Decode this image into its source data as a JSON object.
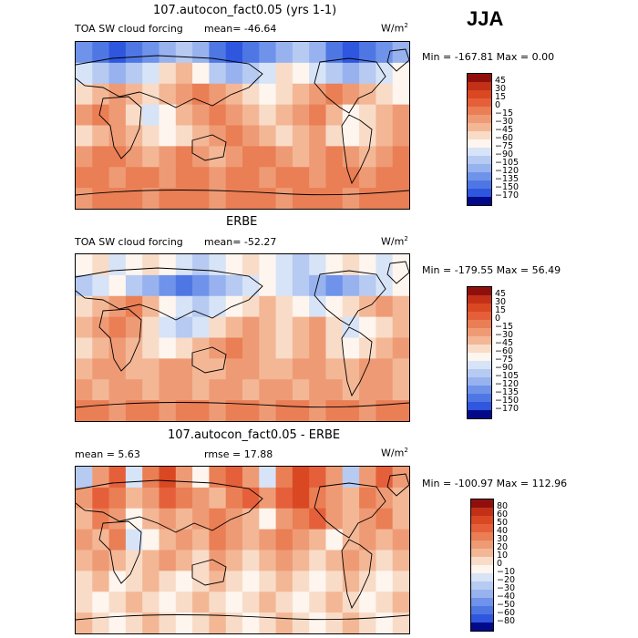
{
  "season": "JJA",
  "colors": {
    "warm": [
      "#f8dcc8",
      "#f3b796",
      "#ee9b75",
      "#ea7e55",
      "#e5603a",
      "#d94823",
      "#c13017",
      "#8f0f0d"
    ],
    "cool": [
      "#d7e3f7",
      "#b6caf2",
      "#97b2ee",
      "#6f93ea",
      "#4f77e4",
      "#2f56df",
      "#1833c6",
      "#030a8a"
    ]
  },
  "panels": [
    {
      "title": "107.autocon_fact0.05 (yrs 1-1)",
      "left_label": "TOA SW cloud forcing",
      "stat1": "mean= -46.64",
      "stat2": "",
      "unit_base": "W/m",
      "unit_exp": "2",
      "minmax": "Min = -167.81 Max =    0.00",
      "colorbar": {
        "labels": [
          "45",
          "30",
          "15",
          "0",
          "−15",
          "−30",
          "−45",
          "−60",
          "−75",
          "−90",
          "−105",
          "−120",
          "−135",
          "−150",
          "−170"
        ],
        "colors": [
          "#8f0f0d",
          "#c13017",
          "#d94823",
          "#e5603a",
          "#ea7e55",
          "#ee9b75",
          "#f3b796",
          "#f8dcc8",
          "#fdf5ee",
          "#d7e3f7",
          "#b6caf2",
          "#97b2ee",
          "#6f93ea",
          "#4f77e4",
          "#2f56df",
          "#030a8a"
        ]
      },
      "field": [
        [
          -135,
          -150,
          -170,
          -150,
          -135,
          -120,
          -105,
          -120,
          -150,
          -170,
          -150,
          -135,
          -120,
          -105,
          -120,
          -150,
          -170,
          -150,
          -135,
          -120
        ],
        [
          -90,
          -105,
          -120,
          -105,
          -90,
          -60,
          -45,
          -75,
          -105,
          -120,
          -105,
          -90,
          -60,
          -75,
          -90,
          -105,
          -120,
          -105,
          -90,
          -75
        ],
        [
          -60,
          -45,
          -30,
          -45,
          -60,
          -45,
          -30,
          -15,
          -30,
          -45,
          -60,
          -75,
          -60,
          -45,
          -30,
          -15,
          -30,
          -45,
          -60,
          -75
        ],
        [
          -30,
          -15,
          -30,
          -60,
          -90,
          -75,
          -45,
          -30,
          -15,
          -30,
          -45,
          -60,
          -45,
          -30,
          -15,
          -45,
          -75,
          -60,
          -45,
          -30
        ],
        [
          -60,
          -45,
          -30,
          -45,
          -60,
          -75,
          -60,
          -45,
          -30,
          -15,
          -30,
          -45,
          -60,
          -45,
          -30,
          -60,
          -75,
          -60,
          -45,
          -30
        ],
        [
          -30,
          -15,
          -15,
          -30,
          -45,
          -30,
          -15,
          -30,
          -45,
          -30,
          -15,
          -15,
          -30,
          -45,
          -30,
          -15,
          -30,
          -45,
          -30,
          -15
        ],
        [
          -15,
          -15,
          -30,
          -15,
          -15,
          -30,
          -15,
          -15,
          -30,
          -15,
          -15,
          -30,
          -15,
          -15,
          -30,
          -15,
          -15,
          -30,
          -15,
          -15
        ],
        [
          -30,
          -15,
          -15,
          -15,
          -30,
          -15,
          -15,
          -15,
          -30,
          -15,
          -15,
          -15,
          -30,
          -15,
          -15,
          -15,
          -30,
          -15,
          -15,
          -15
        ]
      ]
    },
    {
      "title": "ERBE",
      "left_label": "TOA SW cloud forcing",
      "stat1": "mean= -52.27",
      "stat2": "",
      "unit_base": "W/m",
      "unit_exp": "2",
      "minmax": "Min = -179.55 Max =   56.49",
      "colorbar": {
        "labels": [
          "45",
          "30",
          "15",
          "0",
          "−15",
          "−30",
          "−45",
          "−60",
          "−75",
          "−90",
          "−105",
          "−120",
          "−135",
          "−150",
          "−170"
        ],
        "colors": [
          "#8f0f0d",
          "#c13017",
          "#d94823",
          "#e5603a",
          "#ea7e55",
          "#ee9b75",
          "#f3b796",
          "#f8dcc8",
          "#fdf5ee",
          "#d7e3f7",
          "#b6caf2",
          "#97b2ee",
          "#6f93ea",
          "#4f77e4",
          "#2f56df",
          "#030a8a"
        ]
      },
      "field": [
        [
          -75,
          -60,
          -90,
          -75,
          -60,
          -75,
          -90,
          -105,
          -90,
          -75,
          -60,
          -75,
          -90,
          -105,
          -90,
          -75,
          -60,
          -75,
          -90,
          -75
        ],
        [
          -105,
          -90,
          -75,
          -105,
          -120,
          -135,
          -150,
          -135,
          -120,
          -105,
          -90,
          -75,
          -90,
          -105,
          -120,
          -135,
          -120,
          -105,
          -90,
          -75
        ],
        [
          -60,
          -45,
          -30,
          -15,
          -45,
          -75,
          -90,
          -105,
          -90,
          -75,
          -60,
          -45,
          -60,
          -75,
          -90,
          -75,
          -60,
          -45,
          -30,
          -45
        ],
        [
          -45,
          -30,
          -15,
          -30,
          -60,
          -90,
          -105,
          -90,
          -60,
          -45,
          -30,
          -45,
          -60,
          -45,
          -30,
          -60,
          -90,
          -75,
          -60,
          -45
        ],
        [
          -60,
          -45,
          -30,
          -45,
          -60,
          -75,
          -60,
          -45,
          -30,
          -15,
          -30,
          -45,
          -60,
          -45,
          -30,
          -60,
          -75,
          -60,
          -45,
          -30
        ],
        [
          -45,
          -30,
          -30,
          -45,
          -45,
          -30,
          -30,
          -45,
          -45,
          -30,
          -30,
          -45,
          -45,
          -30,
          -30,
          -45,
          -45,
          -30,
          -30,
          -45
        ],
        [
          -30,
          -45,
          -30,
          -30,
          -45,
          -30,
          -30,
          -45,
          -30,
          -30,
          -45,
          -30,
          -30,
          -45,
          -30,
          -30,
          -45,
          -30,
          -30,
          -45
        ],
        [
          -15,
          -15,
          -30,
          -15,
          -15,
          -30,
          -15,
          -15,
          -30,
          -15,
          -15,
          -30,
          -15,
          -15,
          -30,
          -15,
          -15,
          -30,
          -15,
          -15
        ]
      ]
    },
    {
      "title": "107.autocon_fact0.05 - ERBE",
      "left_label": "",
      "stat1": "mean =    5.63",
      "stat2": "rmse =   17.88",
      "unit_base": "W/m",
      "unit_exp": "2",
      "minmax": "Min = -100.97 Max = 112.96",
      "colorbar": {
        "labels": [
          "80",
          "60",
          "50",
          "40",
          "30",
          "20",
          "10",
          "0",
          "−10",
          "−20",
          "−30",
          "−40",
          "−50",
          "−60",
          "−80"
        ],
        "colors": [
          "#8f0f0d",
          "#c13017",
          "#d94823",
          "#e5603a",
          "#ea7e55",
          "#ee9b75",
          "#f3b796",
          "#f8dcc8",
          "#fdf5ee",
          "#d7e3f7",
          "#b6caf2",
          "#97b2ee",
          "#6f93ea",
          "#4f77e4",
          "#2f56df",
          "#030a8a"
        ]
      },
      "field": [
        [
          -30,
          20,
          40,
          -20,
          30,
          50,
          20,
          -10,
          30,
          40,
          20,
          -20,
          30,
          50,
          40,
          20,
          -30,
          20,
          40,
          20
        ],
        [
          20,
          40,
          30,
          10,
          20,
          40,
          30,
          20,
          10,
          30,
          40,
          20,
          40,
          50,
          30,
          20,
          10,
          30,
          20,
          10
        ],
        [
          10,
          30,
          20,
          -10,
          10,
          20,
          10,
          20,
          30,
          20,
          10,
          -10,
          20,
          30,
          40,
          20,
          10,
          20,
          30,
          10
        ],
        [
          20,
          10,
          30,
          -20,
          -10,
          10,
          20,
          10,
          30,
          20,
          10,
          20,
          30,
          20,
          10,
          -10,
          10,
          20,
          10,
          20
        ],
        [
          10,
          20,
          10,
          0,
          10,
          20,
          10,
          0,
          20,
          10,
          0,
          10,
          20,
          10,
          0,
          10,
          20,
          10,
          0,
          10
        ],
        [
          0,
          10,
          -10,
          0,
          10,
          0,
          -10,
          0,
          10,
          0,
          -10,
          0,
          10,
          0,
          -10,
          0,
          10,
          0,
          -10,
          0
        ],
        [
          0,
          -10,
          0,
          10,
          0,
          -10,
          0,
          10,
          0,
          -10,
          0,
          10,
          0,
          -10,
          0,
          10,
          0,
          -10,
          0,
          10
        ],
        [
          10,
          0,
          -10,
          0,
          10,
          0,
          -10,
          0,
          10,
          0,
          -10,
          0,
          10,
          0,
          -10,
          0,
          10,
          0,
          -10,
          0
        ]
      ]
    }
  ]
}
